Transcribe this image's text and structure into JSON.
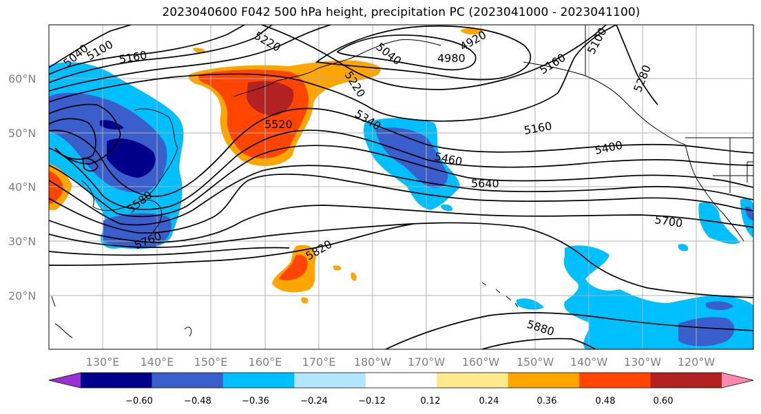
{
  "title": "2023040600 F042 500 hPa height, precipitation PC (2023041000 - 2023041100)",
  "map": {
    "latitude_labels": [
      "60°N",
      "50°N",
      "40°N",
      "30°N",
      "20°N"
    ],
    "longitude_labels": [
      "130°E",
      "140°E",
      "150°E",
      "160°E",
      "170°E",
      "180°W",
      "170°W",
      "160°W",
      "150°W",
      "140°W",
      "130°W",
      "120°W"
    ],
    "contour_labels": [
      "5040",
      "5100",
      "5160",
      "5220",
      "4920",
      "5040",
      "4980",
      "5220",
      "5160",
      "5100",
      "5280",
      "5520",
      "5340",
      "5160",
      "5400",
      "5460",
      "5640",
      "5580",
      "5760",
      "5820",
      "5700",
      "5880"
    ]
  },
  "colorbar": {
    "tick_labels": [
      "−0.60",
      "−0.48",
      "−0.36",
      "−0.24",
      "−0.12",
      "0.12",
      "0.24",
      "0.36",
      "0.48",
      "0.60"
    ],
    "colors": [
      "#9b30d0",
      "#00008b",
      "#3a5fcd",
      "#00bfff",
      "#b3e5ff",
      "#ffffff",
      "#ffe98a",
      "#ffa500",
      "#ff4500",
      "#b22222",
      "#ff88b0"
    ]
  }
}
